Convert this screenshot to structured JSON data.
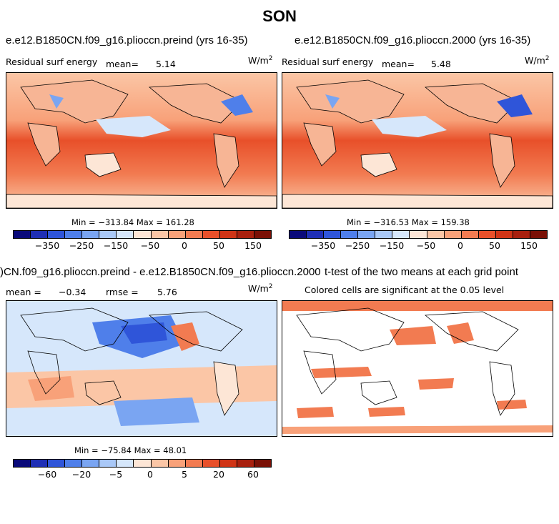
{
  "figure": {
    "title": "SON"
  },
  "panels": {
    "p1": {
      "title": "e.e12.B1850CN.f09_g16.plioccn.preind (yrs 16-35)",
      "field": "Residual surf energy",
      "mean_label": "mean=",
      "mean_value": "5.14",
      "unit": "W/m",
      "unit_exp": "2",
      "minmax": "Min = −313.84 Max = 161.28"
    },
    "p2": {
      "title": "e.e12.B1850CN.f09_g16.plioccn.2000 (yrs 16-35)",
      "field": "Residual surf energy",
      "mean_label": "mean=",
      "mean_value": "5.48",
      "unit": "W/m",
      "unit_exp": "2",
      "minmax": "Min = −316.53 Max = 159.38"
    },
    "p3": {
      "title": ")CN.f09_g16.plioccn.preind - e.e12.B1850CN.f09_g16.plioccn.2000",
      "mean_label": "mean =",
      "mean_value": "−0.34",
      "rmse_label": "rmse =",
      "rmse_value": "5.76",
      "unit": "W/m",
      "unit_exp": "2",
      "minmax": "Min = −75.84 Max =  48.01"
    },
    "p4": {
      "title": "t-test of the two means at each grid point",
      "subtitle": "Colored cells are significant at the 0.05 level"
    }
  },
  "colorbars": {
    "top": {
      "colors": [
        "#0a0a7a",
        "#1f2fb5",
        "#2f55d9",
        "#4f7fea",
        "#7aa5f2",
        "#a9c8f7",
        "#d6e7fb",
        "#fde6d6",
        "#fbc6a6",
        "#f8a179",
        "#f27b51",
        "#e8502a",
        "#d03416",
        "#a8200e",
        "#7a1006"
      ],
      "labels": [
        "−350",
        "−250",
        "−150",
        "−50",
        "0",
        "50",
        "150"
      ]
    },
    "bottom": {
      "colors": [
        "#0a0a7a",
        "#1f2fb5",
        "#2f55d9",
        "#4f7fea",
        "#7aa5f2",
        "#a9c8f7",
        "#d6e7fb",
        "#fde6d6",
        "#fbc6a6",
        "#f8a179",
        "#f27b51",
        "#e8502a",
        "#d03416",
        "#a8200e",
        "#7a1006"
      ],
      "labels": [
        "−60",
        "−20",
        "−5",
        "0",
        "5",
        "20",
        "60"
      ]
    }
  },
  "chart_data": [
    {
      "type": "heatmap",
      "title": "e.e12.B1850CN.f09_g16.plioccn.preind (yrs 16-35)",
      "variable": "Residual surf energy",
      "units": "W/m2",
      "mean": 5.14,
      "min": -313.84,
      "max": 161.28,
      "colorbar_ticks": [
        -350,
        -250,
        -150,
        -50,
        0,
        50,
        150
      ]
    },
    {
      "type": "heatmap",
      "title": "e.e12.B1850CN.f09_g16.plioccn.2000 (yrs 16-35)",
      "variable": "Residual surf energy",
      "units": "W/m2",
      "mean": 5.48,
      "min": -316.53,
      "max": 159.38,
      "colorbar_ticks": [
        -350,
        -250,
        -150,
        -50,
        0,
        50,
        150
      ]
    },
    {
      "type": "heatmap",
      "title": ")CN.f09_g16.plioccn.preind - e.e12.B1850CN.f09_g16.plioccn.2000",
      "units": "W/m2",
      "mean": -0.34,
      "rmse": 5.76,
      "min": -75.84,
      "max": 48.01,
      "colorbar_ticks": [
        -60,
        -20,
        -5,
        0,
        5,
        20,
        60
      ]
    },
    {
      "type": "heatmap",
      "title": "t-test of the two means at each grid point",
      "note": "Colored cells are significant at the 0.05 level"
    }
  ]
}
